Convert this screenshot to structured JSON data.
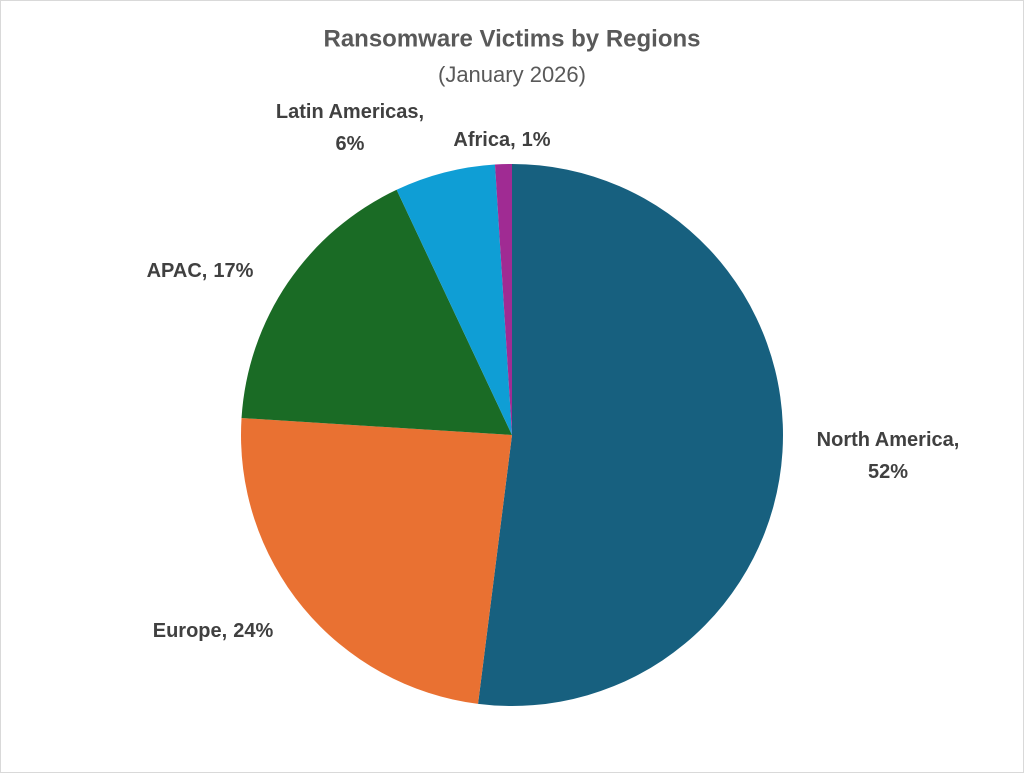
{
  "chart_data": {
    "type": "pie",
    "title": "Ransomware Victims by Regions",
    "subtitle": "(January 2026)",
    "categories": [
      "North America,",
      "Europe,",
      "APAC,",
      "Latin Americas,",
      "Africa,"
    ],
    "values": [
      52,
      24,
      17,
      6,
      1
    ],
    "value_labels": [
      "52%",
      "24%",
      "17%",
      "6%",
      "1%"
    ],
    "colors": [
      "#17607f",
      "#e97132",
      "#1a6b25",
      "#0f9ed5",
      "#a02b93"
    ]
  }
}
